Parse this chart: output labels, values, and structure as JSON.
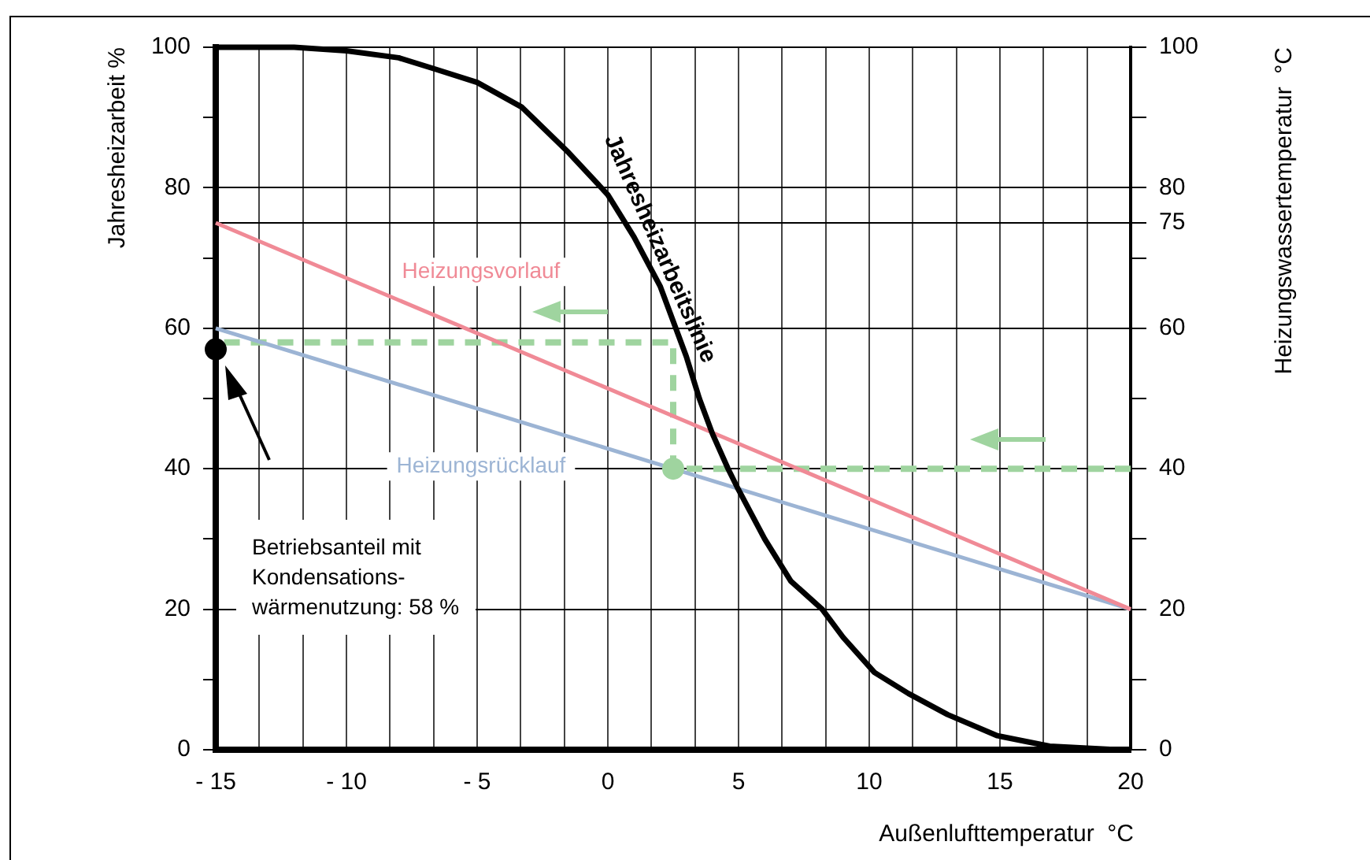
{
  "chart_data": {
    "type": "line",
    "xlabel": "Außenlufttemperatur  °C",
    "ylabel": "Jahresheizarbeit %",
    "y2label": "Heizungswassertemperatur  °C",
    "xlim": [
      -15,
      20
    ],
    "ylim": [
      0,
      100
    ],
    "y2lim": [
      0,
      100
    ],
    "xticks": [
      {
        "value": -15,
        "label": "- 15"
      },
      {
        "value": -13.333,
        "label": null
      },
      {
        "value": -11.667,
        "label": null
      },
      {
        "value": -10,
        "label": "- 10"
      },
      {
        "value": -8.333,
        "label": null
      },
      {
        "value": -6.667,
        "label": null
      },
      {
        "value": -5,
        "label": "- 5"
      },
      {
        "value": -3.333,
        "label": null
      },
      {
        "value": -1.667,
        "label": null
      },
      0,
      {
        "value": 1.667,
        "label": null
      },
      {
        "value": 3.333,
        "label": null
      },
      5,
      {
        "value": 6.667,
        "label": null
      },
      {
        "value": 8.333,
        "label": null
      },
      10,
      {
        "value": 11.667,
        "label": null
      },
      {
        "value": 13.333,
        "label": null
      },
      15,
      {
        "value": 16.667,
        "label": null
      },
      {
        "value": 18.333,
        "label": null
      },
      20
    ],
    "yticks": [
      0,
      {
        "value": 10,
        "label": null
      },
      20,
      {
        "value": 30,
        "label": null
      },
      40,
      {
        "value": 50,
        "label": null
      },
      60,
      {
        "value": 70,
        "label": null
      },
      80,
      {
        "value": 90,
        "label": null
      },
      100
    ],
    "y2ticks": [
      0,
      {
        "value": 10,
        "label": null
      },
      20,
      {
        "value": 30,
        "label": null
      },
      40,
      {
        "value": 50,
        "label": null
      },
      60,
      {
        "value": 70,
        "label": null
      },
      75,
      80,
      {
        "value": 90,
        "label": null
      },
      100
    ],
    "grid": true,
    "legend": false,
    "marker": "none",
    "line_style": "solid",
    "series": [
      {
        "name": "Jahresheizarbeitslinie",
        "color": "#000000",
        "x": [
          -15,
          -12,
          -10,
          -8,
          -6.7,
          -5,
          -3.3,
          -1.5,
          0,
          1,
          2,
          3,
          3.5,
          4,
          4.6,
          5,
          6,
          7,
          8.2,
          9,
          10.2,
          11.5,
          13,
          14.9,
          16.9,
          19.5
        ],
        "values": [
          100,
          100,
          99.5,
          98.5,
          97,
          95,
          91.5,
          85,
          79,
          73,
          66,
          56,
          50,
          45,
          40,
          37,
          30,
          24,
          20,
          16,
          11,
          8,
          5,
          2,
          0.5,
          0
        ]
      },
      {
        "name": "Heizungsvorlauf",
        "color": "#f08a96",
        "x": [
          -15,
          20
        ],
        "values": [
          75,
          20
        ]
      },
      {
        "name": "Heizungsrücklauf",
        "color": "#9cb4d4",
        "x": [
          -15,
          20
        ],
        "values": [
          60,
          20
        ]
      },
      {
        "color": "#9fd49f",
        "line_style": "dashed",
        "x": [
          20,
          2.5,
          2.5,
          -15
        ],
        "values": [
          40,
          40,
          58,
          58
        ]
      },
      {
        "type": "scatter",
        "color": "#9fd49f",
        "marker": "circle",
        "x": [
          2.5
        ],
        "values": [
          40
        ]
      },
      {
        "type": "scatter",
        "color": "#000000",
        "marker": "circle",
        "x": [
          -15
        ],
        "values": [
          57
        ]
      }
    ],
    "annotations": [
      "Betriebsanteil mit\nKondensations-\nwärmenutzung: 58 %"
    ]
  }
}
